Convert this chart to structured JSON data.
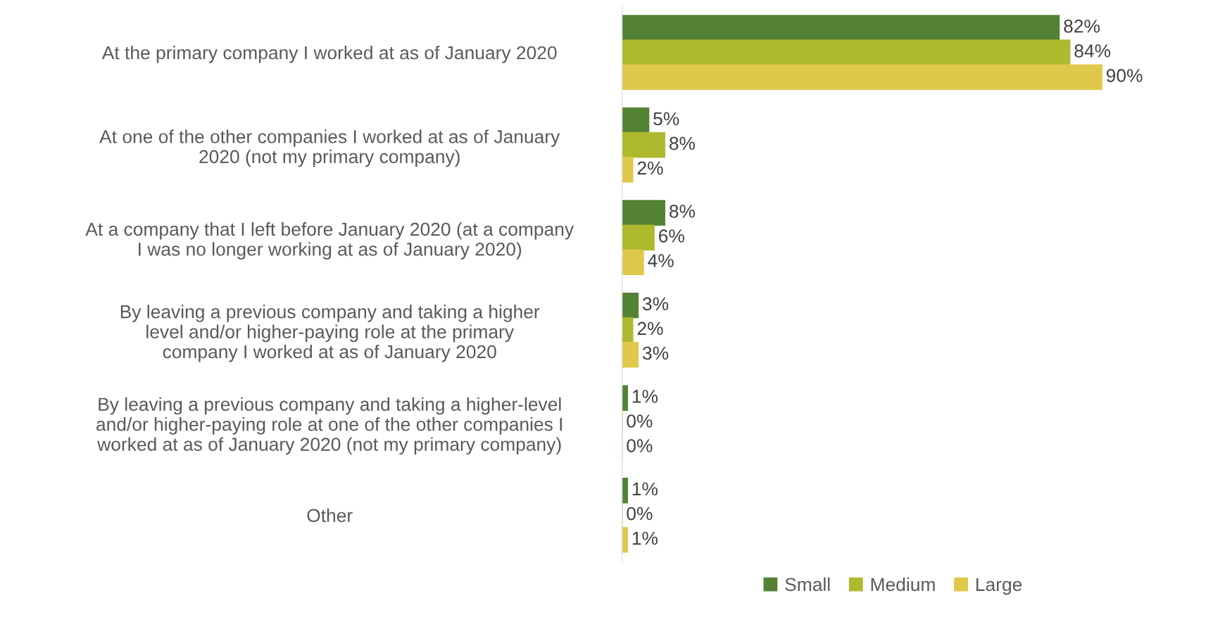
{
  "chart_data": {
    "type": "bar",
    "orientation": "horizontal",
    "categories": [
      "At the primary company I worked at as of January 2020",
      "At one of the other companies I worked at as of January\n2020 (not my primary company)",
      "At a company that I left before January 2020 (at a company\nI was no longer working at as of January 2020)",
      "By leaving a previous company and taking a higher\nlevel and/or higher-paying role at the primary\ncompany I worked at as of January 2020",
      "By leaving a previous company and taking a higher-level\nand/or higher-paying role at one of the other companies I\nworked at as of January 2020 (not my primary company)",
      "Other"
    ],
    "series": [
      {
        "name": "Small",
        "color": "#548235",
        "values": [
          82,
          5,
          8,
          3,
          1,
          1
        ],
        "value_labels": [
          "82%",
          "5%",
          "8%",
          "3%",
          "1%",
          "1%"
        ]
      },
      {
        "name": "Medium",
        "color": "#afb92e",
        "values": [
          84,
          8,
          6,
          2,
          0,
          0
        ],
        "value_labels": [
          "84%",
          "8%",
          "6%",
          "2%",
          "0%",
          "0%"
        ]
      },
      {
        "name": "Large",
        "color": "#e0c84b",
        "values": [
          90,
          2,
          4,
          3,
          0,
          1
        ],
        "value_labels": [
          "90%",
          "2%",
          "4%",
          "3%",
          "0%",
          "1%"
        ]
      }
    ],
    "tick_labels": "y",
    "grid": false,
    "legend": "bottom"
  }
}
